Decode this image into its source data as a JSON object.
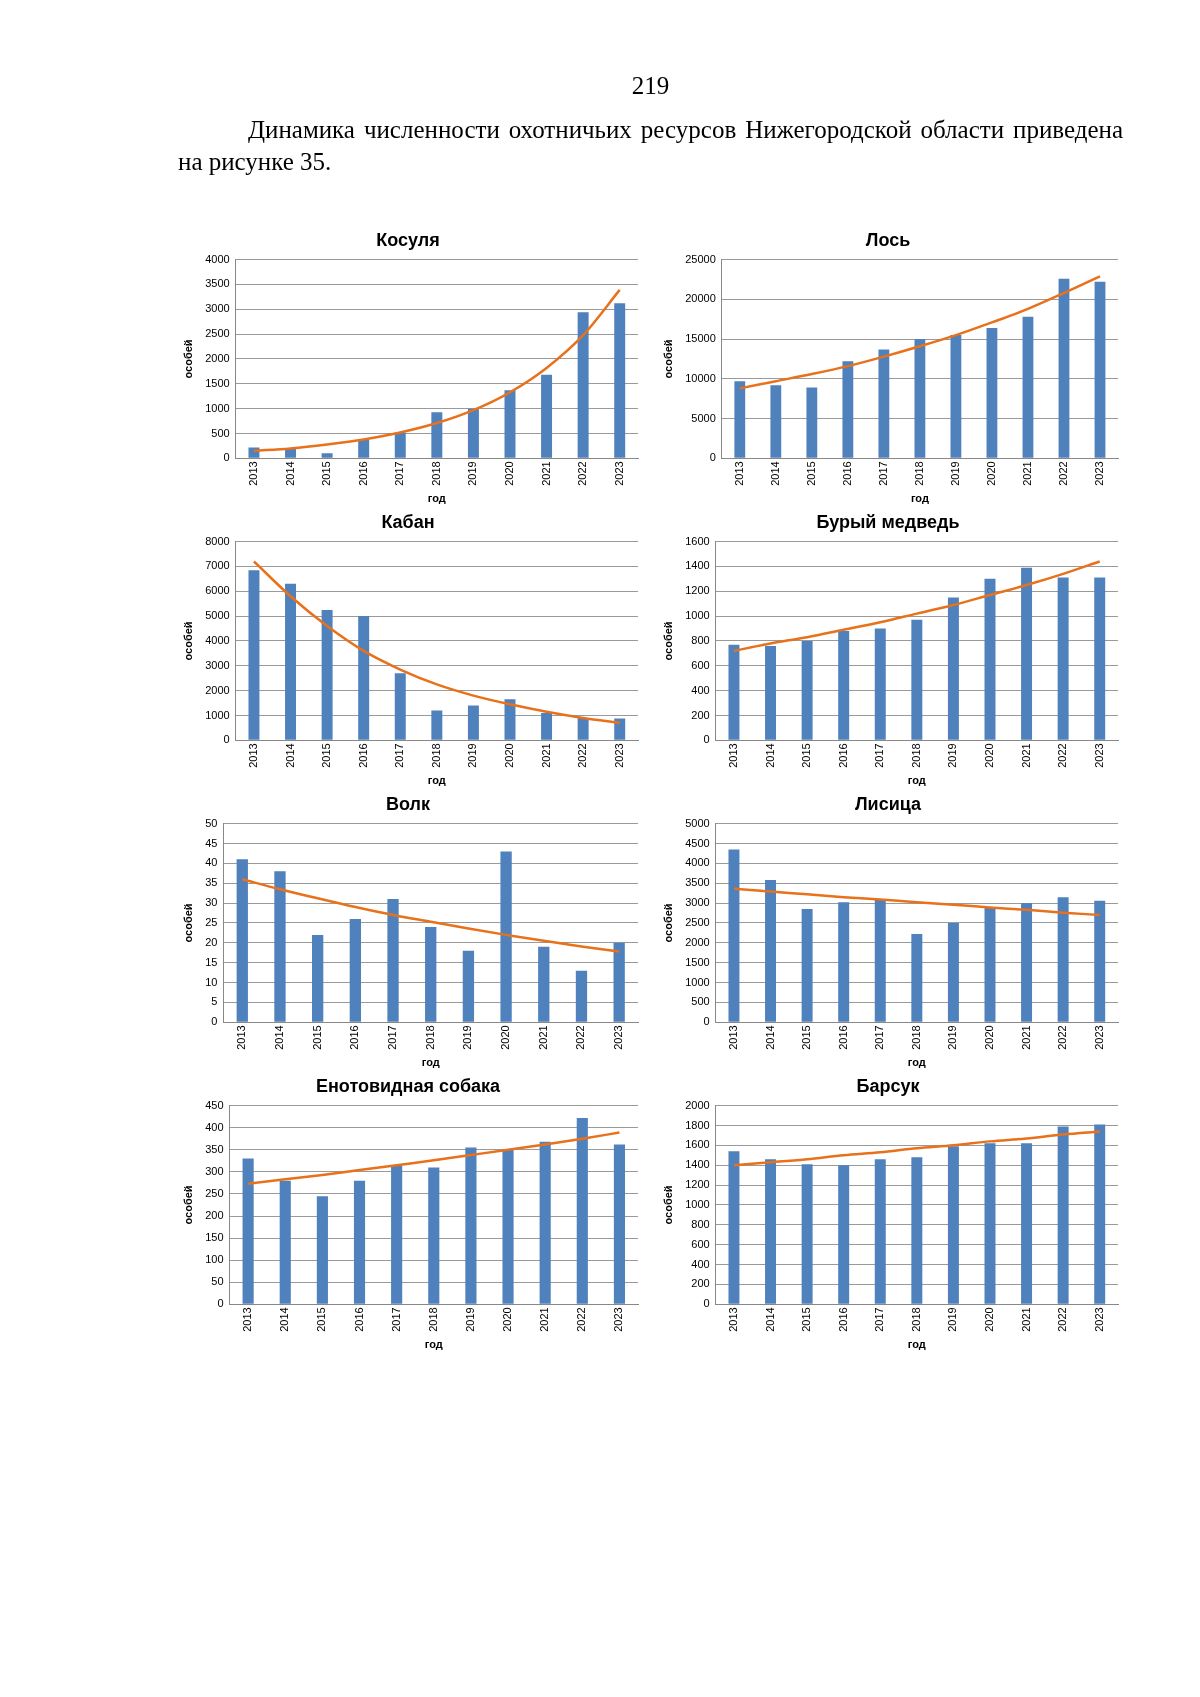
{
  "chart_data": [
    {
      "type": "bar",
      "title": "Косуля",
      "annotations": [
        "219",
        "Динамика численности охотничьих ресурсов Нижегородской области приведена на рисунке 35."
      ],
      "xlabel": "год",
      "ylabel": "особей",
      "categories": [
        "2013",
        "2014",
        "2015",
        "2016",
        "2017",
        "2018",
        "2019",
        "2020",
        "2021",
        "2022",
        "2023"
      ],
      "ylim": [
        0,
        4000
      ],
      "yticks": [
        0,
        500,
        1000,
        1500,
        2000,
        2500,
        3000,
        3500,
        4000
      ],
      "grid": "y",
      "legend": false,
      "marker": "none",
      "line_style": "solid",
      "series": [
        {
          "color": "#4f81bd",
          "values": [
            220,
            200,
            100,
            380,
            520,
            930,
            1000,
            1370,
            1680,
            2940,
            3120
          ]
        },
        {
          "type": "line",
          "color": "#e8711b",
          "values": [
            150,
            200,
            280,
            380,
            520,
            710,
            970,
            1330,
            1820,
            2480,
            3390
          ]
        }
      ]
    },
    {
      "type": "bar",
      "title": "Лось",
      "xlabel": "год",
      "ylabel": "особей",
      "categories": [
        "2013",
        "2014",
        "2015",
        "2016",
        "2017",
        "2018",
        "2019",
        "2020",
        "2021",
        "2022",
        "2023"
      ],
      "ylim": [
        0,
        25000
      ],
      "yticks": [
        0,
        5000,
        10000,
        15000,
        20000,
        25000
      ],
      "grid": "y",
      "legend": false,
      "marker": "none",
      "line_style": "solid",
      "series": [
        {
          "color": "#4f81bd",
          "values": [
            9700,
            9200,
            8900,
            12200,
            13700,
            15000,
            15500,
            16400,
            17800,
            22600,
            22200
          ]
        },
        {
          "type": "line",
          "color": "#e8711b",
          "values": [
            8800,
            9700,
            10600,
            11600,
            12800,
            14100,
            15500,
            17100,
            18800,
            20800,
            22900
          ]
        }
      ]
    },
    {
      "type": "bar",
      "title": "Кабан",
      "xlabel": "год",
      "ylabel": "особей",
      "categories": [
        "2013",
        "2014",
        "2015",
        "2016",
        "2017",
        "2018",
        "2019",
        "2020",
        "2021",
        "2022",
        "2023"
      ],
      "ylim": [
        0,
        8000
      ],
      "yticks": [
        0,
        1000,
        2000,
        3000,
        4000,
        5000,
        6000,
        7000,
        8000
      ],
      "grid": "y",
      "legend": false,
      "marker": "none",
      "line_style": "solid",
      "series": [
        {
          "color": "#4f81bd",
          "values": [
            6850,
            6300,
            5250,
            5000,
            2700,
            1200,
            1400,
            1650,
            1100,
            900,
            880
          ]
        },
        {
          "type": "line",
          "color": "#e8711b",
          "values": [
            7200,
            5800,
            4600,
            3600,
            2850,
            2250,
            1800,
            1450,
            1150,
            900,
            700
          ]
        }
      ]
    },
    {
      "type": "bar",
      "title": "Бурый медведь",
      "xlabel": "год",
      "ylabel": "особей",
      "categories": [
        "2013",
        "2014",
        "2015",
        "2016",
        "2017",
        "2018",
        "2019",
        "2020",
        "2021",
        "2022",
        "2023"
      ],
      "ylim": [
        0,
        1600
      ],
      "yticks": [
        0,
        200,
        400,
        600,
        800,
        1000,
        1200,
        1400,
        1600
      ],
      "grid": "y",
      "legend": false,
      "marker": "none",
      "line_style": "solid",
      "series": [
        {
          "color": "#4f81bd",
          "values": [
            770,
            760,
            800,
            880,
            900,
            970,
            1150,
            1300,
            1390,
            1310,
            1310
          ]
        },
        {
          "type": "line",
          "color": "#e8711b",
          "values": [
            720,
            780,
            830,
            890,
            950,
            1020,
            1090,
            1170,
            1250,
            1340,
            1440
          ]
        }
      ]
    },
    {
      "type": "bar",
      "title": "Волк",
      "xlabel": "год",
      "ylabel": "особей",
      "categories": [
        "2013",
        "2014",
        "2015",
        "2016",
        "2017",
        "2018",
        "2019",
        "2020",
        "2021",
        "2022",
        "2023"
      ],
      "ylim": [
        0,
        50
      ],
      "yticks": [
        0,
        5,
        10,
        15,
        20,
        25,
        30,
        35,
        40,
        45,
        50
      ],
      "grid": "y",
      "legend": false,
      "marker": "none",
      "line_style": "solid",
      "series": [
        {
          "color": "#4f81bd",
          "values": [
            41,
            38,
            22,
            26,
            31,
            24,
            18,
            43,
            19,
            13,
            20
          ]
        },
        {
          "type": "line",
          "color": "#e8711b",
          "values": [
            36,
            33.5,
            31.2,
            29,
            27,
            25.3,
            23.6,
            22,
            20.5,
            19.1,
            17.8
          ]
        }
      ]
    },
    {
      "type": "bar",
      "title": "Лисица",
      "xlabel": "год",
      "ylabel": "особей",
      "categories": [
        "2013",
        "2014",
        "2015",
        "2016",
        "2017",
        "2018",
        "2019",
        "2020",
        "2021",
        "2022",
        "2023"
      ],
      "ylim": [
        0,
        5000
      ],
      "yticks": [
        0,
        500,
        1000,
        1500,
        2000,
        2500,
        3000,
        3500,
        4000,
        4500,
        5000
      ],
      "grid": "y",
      "legend": false,
      "marker": "none",
      "line_style": "solid",
      "series": [
        {
          "color": "#4f81bd",
          "values": [
            4350,
            3580,
            2850,
            3020,
            3080,
            2220,
            2500,
            2880,
            3000,
            3150,
            3060
          ]
        },
        {
          "type": "line",
          "color": "#e8711b",
          "values": [
            3360,
            3290,
            3220,
            3150,
            3090,
            3020,
            2960,
            2890,
            2830,
            2760,
            2700
          ]
        }
      ]
    },
    {
      "type": "bar",
      "title": "Енотовидная собака",
      "xlabel": "год",
      "ylabel": "особей",
      "categories": [
        "2013",
        "2014",
        "2015",
        "2016",
        "2017",
        "2018",
        "2019",
        "2020",
        "2021",
        "2022",
        "2023"
      ],
      "ylim": [
        0,
        450
      ],
      "yticks": [
        0,
        50,
        100,
        150,
        200,
        250,
        300,
        350,
        400,
        450
      ],
      "grid": "y",
      "legend": false,
      "marker": "none",
      "line_style": "solid",
      "series": [
        {
          "color": "#4f81bd",
          "values": [
            330,
            280,
            245,
            280,
            315,
            310,
            355,
            350,
            368,
            422,
            362
          ]
        },
        {
          "type": "line",
          "color": "#e8711b",
          "values": [
            273,
            283,
            293,
            304,
            315,
            326,
            338,
            350,
            362,
            375,
            389
          ]
        }
      ]
    },
    {
      "type": "bar",
      "title": "Барсук",
      "xlabel": "год",
      "ylabel": "особей",
      "categories": [
        "2013",
        "2014",
        "2015",
        "2016",
        "2017",
        "2018",
        "2019",
        "2020",
        "2021",
        "2022",
        "2023"
      ],
      "ylim": [
        0,
        2000
      ],
      "yticks": [
        0,
        200,
        400,
        600,
        800,
        1000,
        1200,
        1400,
        1600,
        1800,
        2000
      ],
      "grid": "y",
      "legend": false,
      "marker": "none",
      "line_style": "solid",
      "series": [
        {
          "color": "#4f81bd",
          "values": [
            1540,
            1460,
            1410,
            1400,
            1460,
            1480,
            1590,
            1620,
            1620,
            1790,
            1810
          ]
        },
        {
          "type": "line",
          "color": "#e8711b",
          "values": [
            1400,
            1430,
            1460,
            1500,
            1530,
            1570,
            1600,
            1640,
            1670,
            1710,
            1740
          ]
        }
      ]
    }
  ]
}
